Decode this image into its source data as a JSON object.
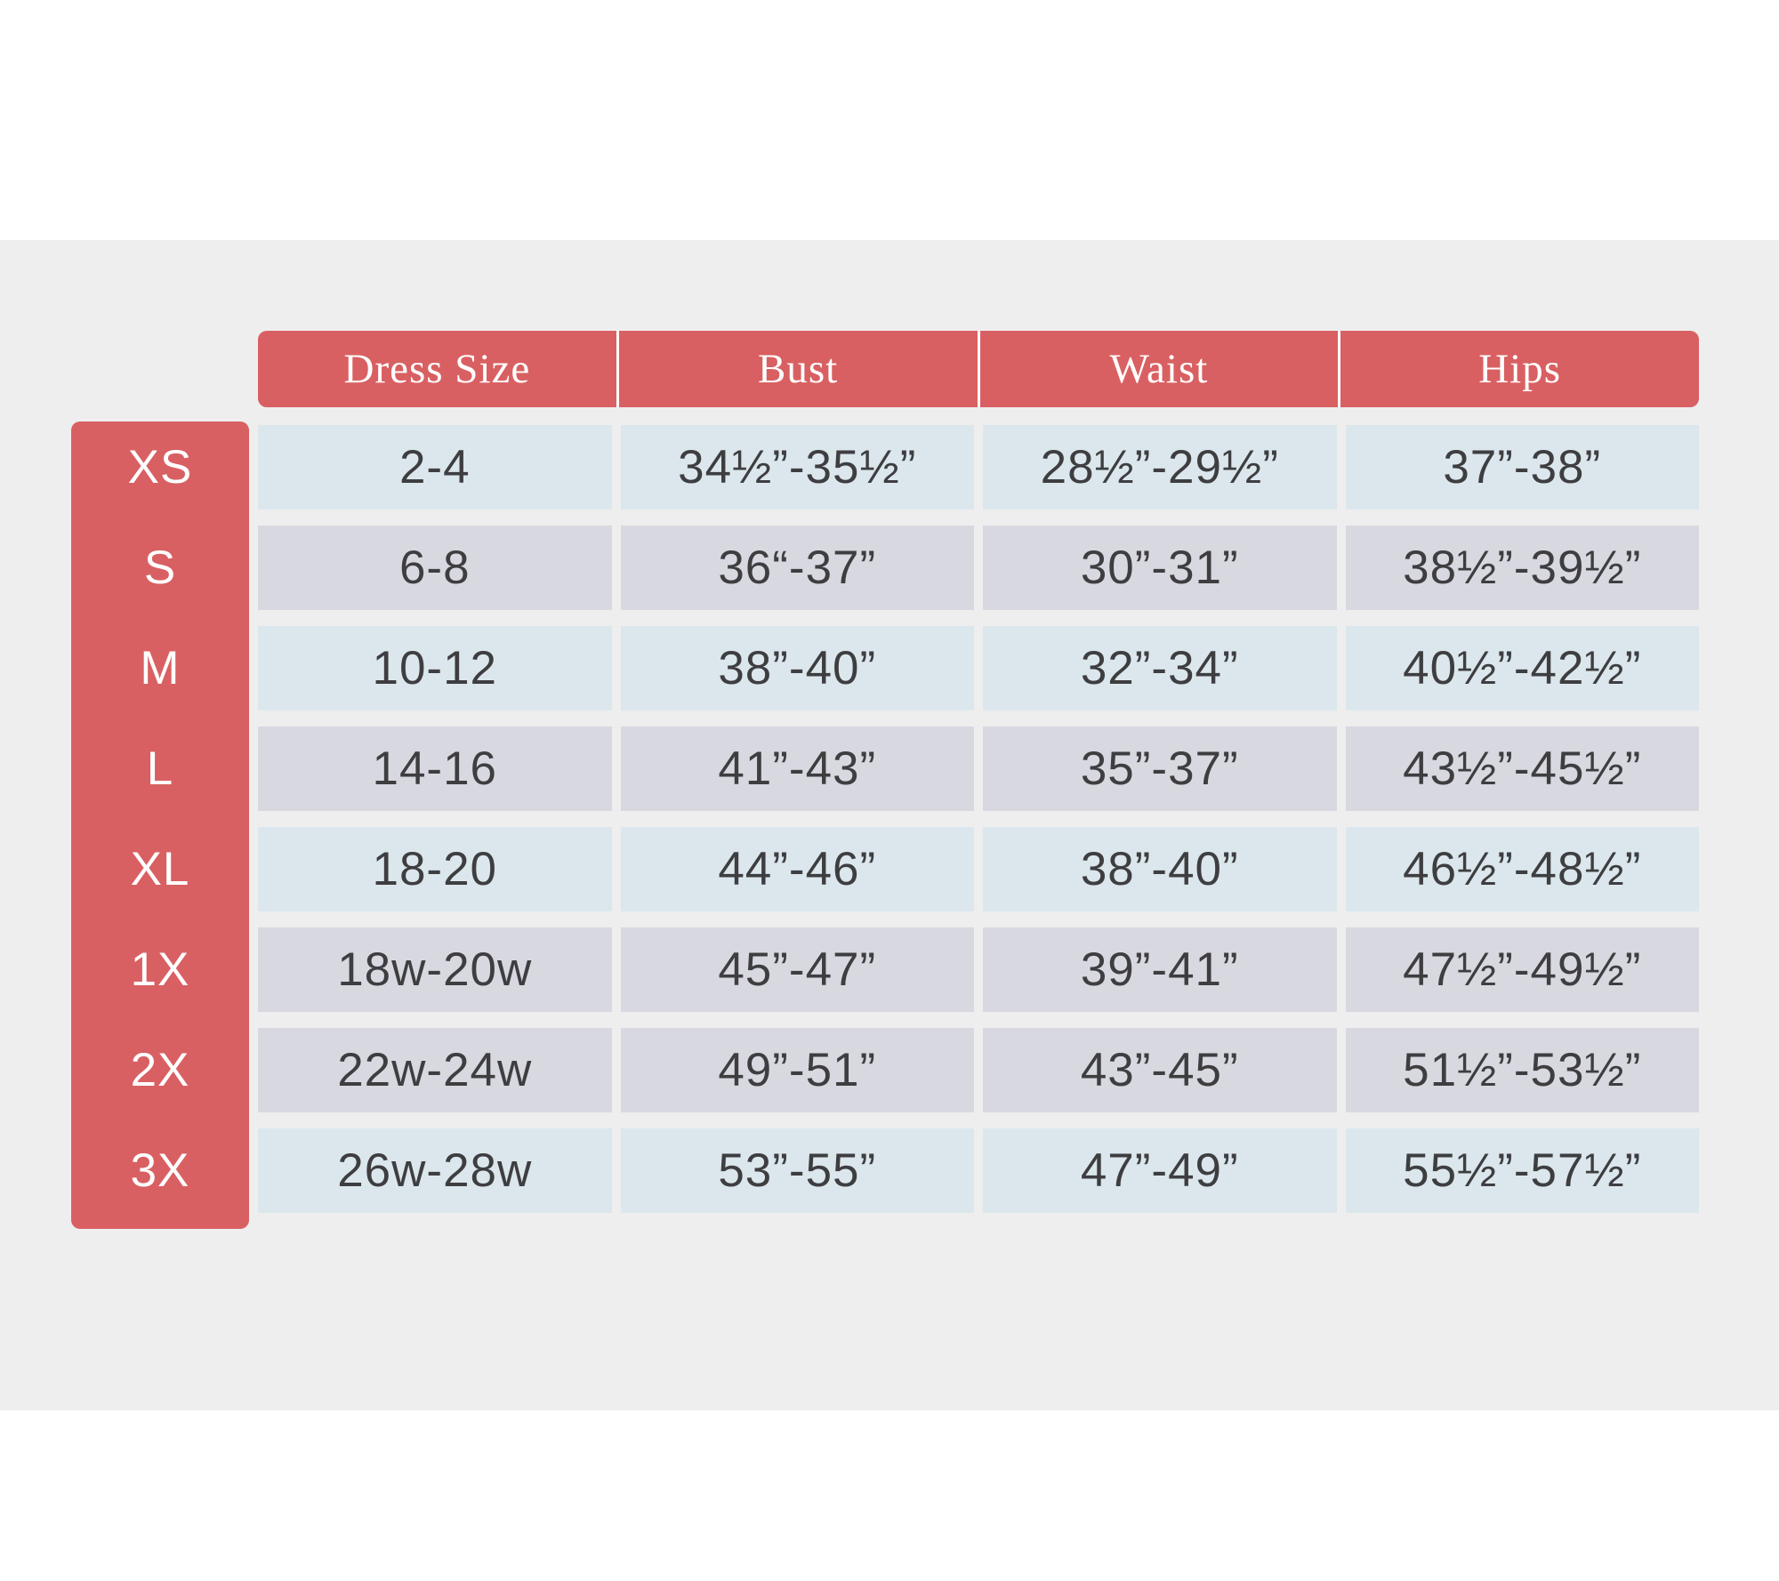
{
  "table": {
    "columns": {
      "dress": "Dress Size",
      "bust": "Bust",
      "waist": "Waist",
      "hips": "Hips"
    },
    "rows": [
      {
        "size": "XS",
        "dress": "2-4",
        "bust": "34½”-35½”",
        "waist": "28½”-29½”",
        "hips": "37”-38”"
      },
      {
        "size": "S",
        "dress": "6-8",
        "bust": "36“-37”",
        "waist": "30”-31”",
        "hips": "38½”-39½”"
      },
      {
        "size": "M",
        "dress": "10-12",
        "bust": "38”-40”",
        "waist": "32”-34”",
        "hips": "40½”-42½”"
      },
      {
        "size": "L",
        "dress": "14-16",
        "bust": "41”-43”",
        "waist": "35”-37”",
        "hips": "43½”-45½”"
      },
      {
        "size": "XL",
        "dress": "18-20",
        "bust": "44”-46”",
        "waist": "38”-40”",
        "hips": "46½”-48½”"
      },
      {
        "size": "1X",
        "dress": "18w-20w",
        "bust": "45”-47”",
        "waist": "39”-41”",
        "hips": "47½”-49½”"
      },
      {
        "size": "2X",
        "dress": "22w-24w",
        "bust": "49”-51”",
        "waist": "43”-45”",
        "hips": "51½”-53½”"
      },
      {
        "size": "3X",
        "dress": "26w-28w",
        "bust": "53”-55”",
        "waist": "47”-49”",
        "hips": "55½”-57½”"
      }
    ],
    "palette": {
      "coral": "#D96062",
      "row_blue": "#DBE7EC",
      "row_lavender": "#D8D8E1",
      "panel_gray": "#EEEEEF",
      "cell_text": "#3E3E41",
      "header_text": "#FFFFFF"
    }
  },
  "chart_data": {
    "type": "table",
    "title": "",
    "row_header_column": [
      "XS",
      "S",
      "M",
      "L",
      "XL",
      "1X",
      "2X",
      "3X"
    ],
    "column_headers": [
      "Dress Size",
      "Bust",
      "Waist",
      "Hips"
    ],
    "rows": [
      [
        "2-4",
        "34½”-35½”",
        "28½”-29½”",
        "37”-38”"
      ],
      [
        "6-8",
        "36“-37”",
        "30”-31”",
        "38½”-39½”"
      ],
      [
        "10-12",
        "38”-40”",
        "32”-34”",
        "40½”-42½”"
      ],
      [
        "14-16",
        "41”-43”",
        "35”-37”",
        "43½”-45½”"
      ],
      [
        "18-20",
        "44”-46”",
        "38”-40”",
        "46½”-48½”"
      ],
      [
        "18w-20w",
        "45”-47”",
        "39”-41”",
        "47½”-49½”"
      ],
      [
        "22w-24w",
        "49”-51”",
        "43”-45”",
        "51½”-53½”"
      ],
      [
        "26w-28w",
        "53”-55”",
        "47”-49”",
        "55½”-57½”"
      ]
    ],
    "layout_hints": {
      "grid": "off",
      "row_stripes": [
        "blue",
        "lavender",
        "blue",
        "lavender",
        "blue",
        "lavender",
        "lavender",
        "blue"
      ]
    }
  }
}
